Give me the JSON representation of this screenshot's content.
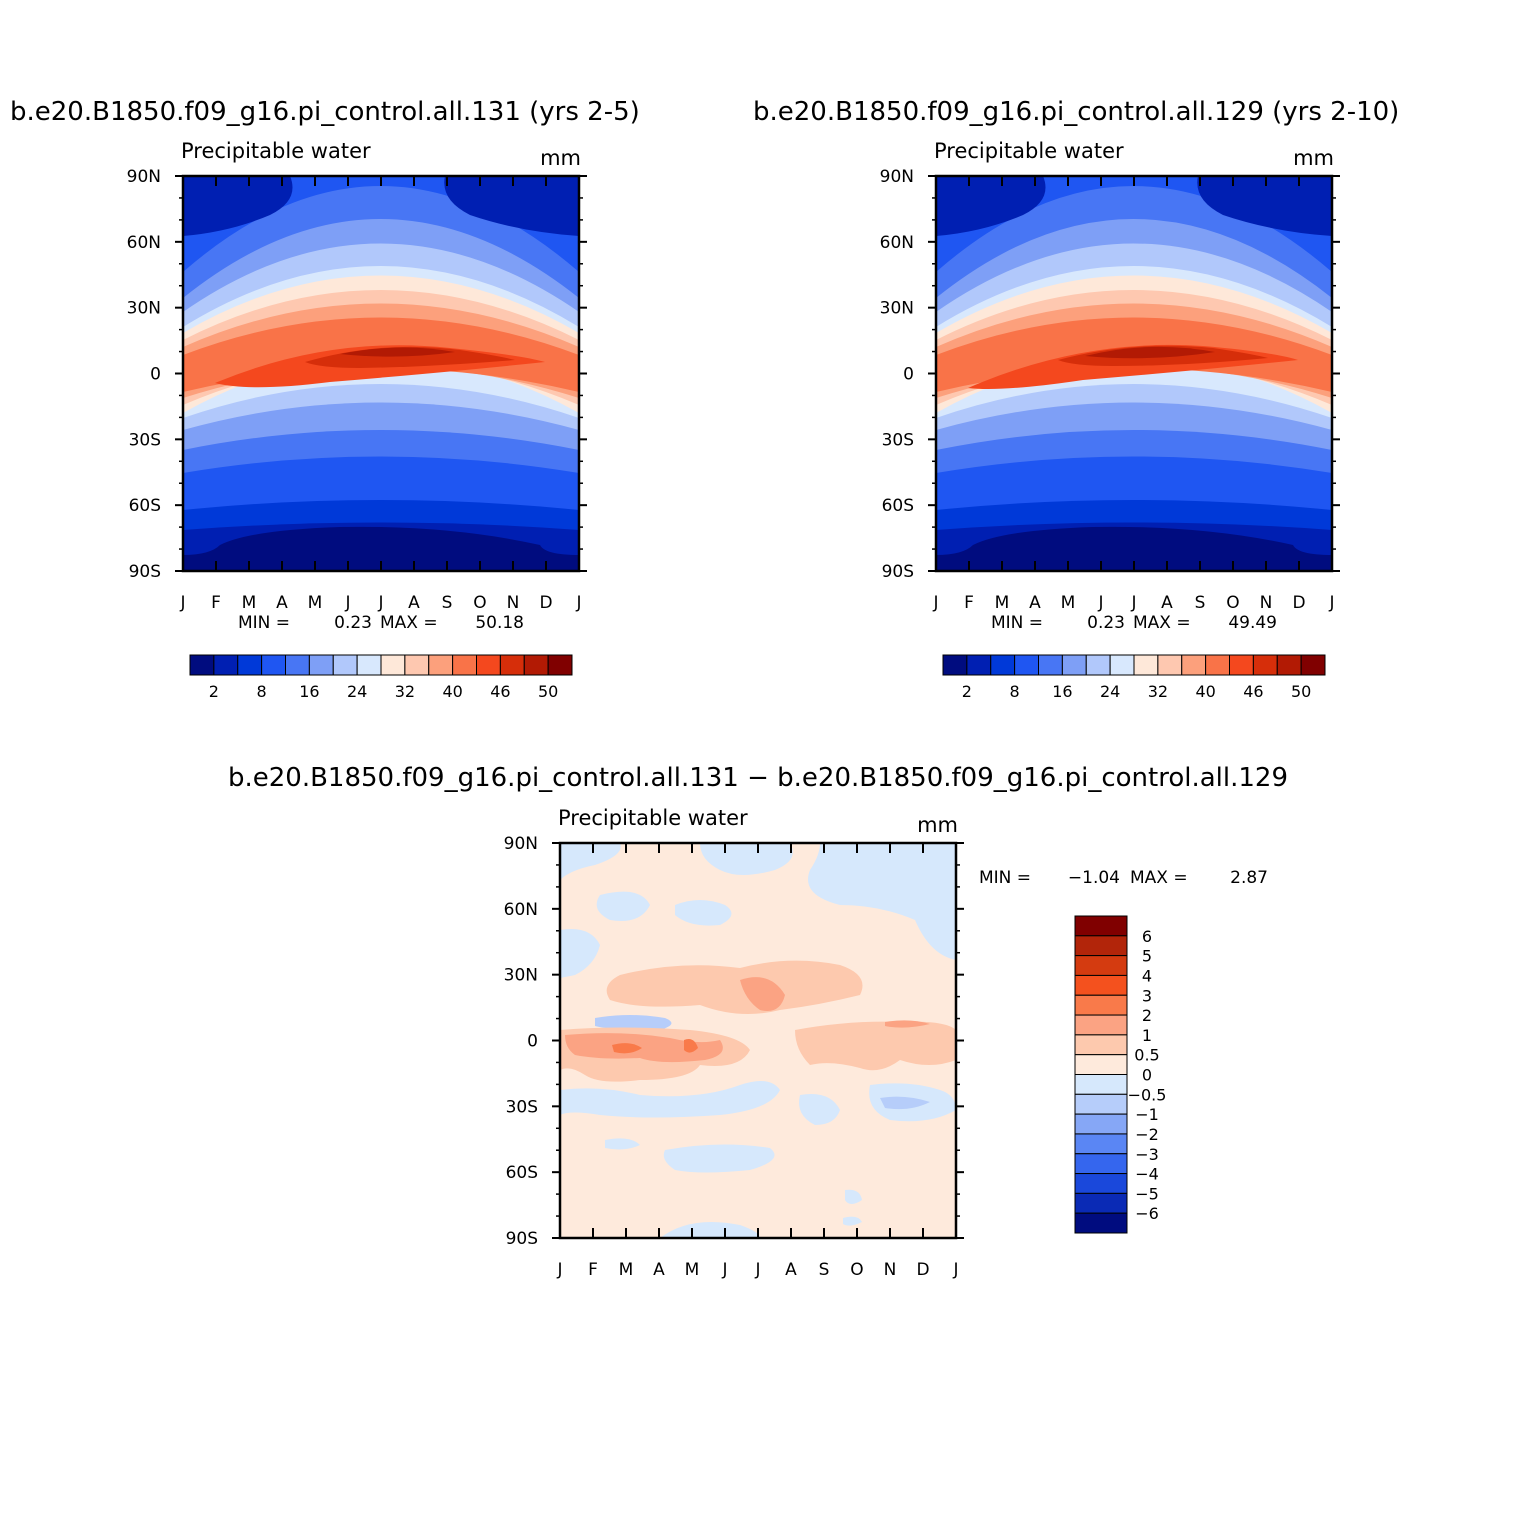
{
  "chart_data": [
    {
      "type": "heatmap",
      "title": "b.e20.B1850.f09_g16.pi_control.all.131 (yrs 2-5)",
      "subtitle": "Precipitable water",
      "units": "mm",
      "x_tick_labels": [
        "J",
        "F",
        "M",
        "A",
        "M",
        "J",
        "J",
        "A",
        "S",
        "O",
        "N",
        "D",
        "J"
      ],
      "y_tick_labels": [
        "90N",
        "60N",
        "30N",
        "0",
        "30S",
        "60S",
        "90S"
      ],
      "ylim": [
        -90,
        90
      ],
      "min_label": "MIN =",
      "min_value": "0.23",
      "max_label": "MAX =",
      "max_value": "50.18",
      "colorbar_labels": [
        "2",
        "8",
        "16",
        "24",
        "32",
        "40",
        "46",
        "50"
      ],
      "colors": [
        "#000c7f",
        "#001fb2",
        "#0039d8",
        "#1f56f2",
        "#4876f4",
        "#7e9ff6",
        "#b1c8fb",
        "#d8e8fd",
        "#fee8d9",
        "#fec8b0",
        "#fca07c",
        "#f97348",
        "#f4481e",
        "#d62e0a",
        "#b21a04",
        "#800000"
      ]
    },
    {
      "type": "heatmap",
      "title": "b.e20.B1850.f09_g16.pi_control.all.129 (yrs 2-10)",
      "subtitle": "Precipitable water",
      "units": "mm",
      "x_tick_labels": [
        "J",
        "F",
        "M",
        "A",
        "M",
        "J",
        "J",
        "A",
        "S",
        "O",
        "N",
        "D",
        "J"
      ],
      "y_tick_labels": [
        "90N",
        "60N",
        "30N",
        "0",
        "30S",
        "60S",
        "90S"
      ],
      "ylim": [
        -90,
        90
      ],
      "min_label": "MIN =",
      "min_value": "0.23",
      "max_label": "MAX =",
      "max_value": "49.49",
      "colorbar_labels": [
        "2",
        "8",
        "16",
        "24",
        "32",
        "40",
        "46",
        "50"
      ],
      "colors": [
        "#000c7f",
        "#001fb2",
        "#0039d8",
        "#1f56f2",
        "#4876f4",
        "#7e9ff6",
        "#b1c8fb",
        "#d8e8fd",
        "#fee8d9",
        "#fec8b0",
        "#fca07c",
        "#f97348",
        "#f4481e",
        "#d62e0a",
        "#b21a04",
        "#800000"
      ]
    },
    {
      "type": "heatmap",
      "title": "b.e20.B1850.f09_g16.pi_control.all.131 − b.e20.B1850.f09_g16.pi_control.all.129",
      "subtitle": "Precipitable water",
      "units": "mm",
      "x_tick_labels": [
        "J",
        "F",
        "M",
        "A",
        "M",
        "J",
        "J",
        "A",
        "S",
        "O",
        "N",
        "D",
        "J"
      ],
      "y_tick_labels": [
        "90N",
        "60N",
        "30N",
        "0",
        "30S",
        "60S",
        "90S"
      ],
      "ylim": [
        -90,
        90
      ],
      "min_label": "MIN =",
      "min_value": "−1.04",
      "max_label": "MAX =",
      "max_value": "2.87",
      "colorbar_labels": [
        "6",
        "5",
        "4",
        "3",
        "2",
        "1",
        "0.5",
        "0",
        "−0.5",
        "−1",
        "−2",
        "−3",
        "−4",
        "−5",
        "−6"
      ],
      "colors": [
        "#800000",
        "#b2250a",
        "#d43b10",
        "#f4511e",
        "#f97a4a",
        "#fba383",
        "#fdc9ae",
        "#feeadc",
        "#d6e8fc",
        "#b6cdfa",
        "#86a7f6",
        "#5a86f4",
        "#3566ee",
        "#1a48db",
        "#0a2ab5",
        "#000c7f"
      ]
    }
  ]
}
